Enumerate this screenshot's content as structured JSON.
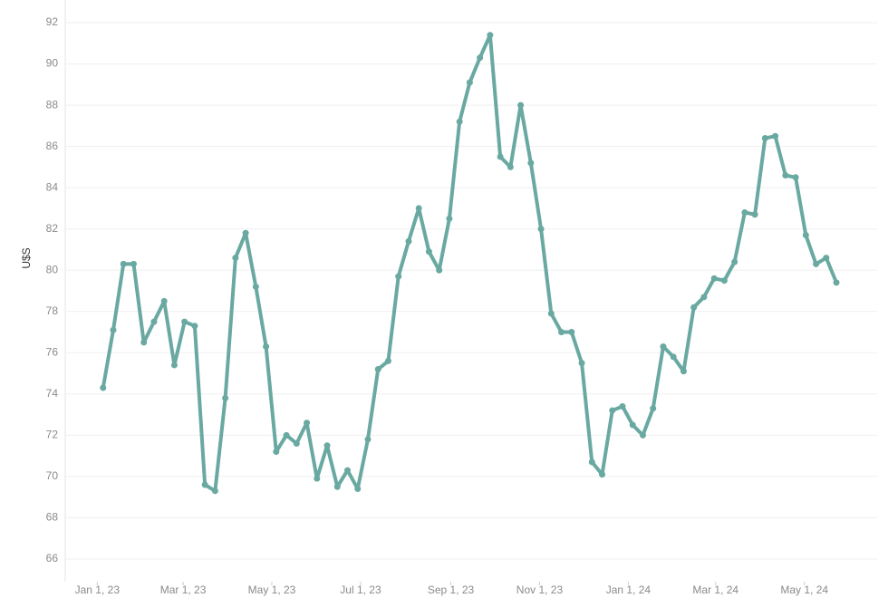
{
  "chart_data": {
    "type": "line",
    "y_label": "U$S",
    "x": [
      "2023-01-05",
      "2023-01-12",
      "2023-01-19",
      "2023-01-26",
      "2023-02-02",
      "2023-02-09",
      "2023-02-16",
      "2023-02-23",
      "2023-03-02",
      "2023-03-09",
      "2023-03-16",
      "2023-03-23",
      "2023-03-30",
      "2023-04-06",
      "2023-04-13",
      "2023-04-20",
      "2023-04-27",
      "2023-05-04",
      "2023-05-11",
      "2023-05-18",
      "2023-05-25",
      "2023-06-01",
      "2023-06-08",
      "2023-06-15",
      "2023-06-22",
      "2023-06-29",
      "2023-07-06",
      "2023-07-13",
      "2023-07-20",
      "2023-07-27",
      "2023-08-03",
      "2023-08-10",
      "2023-08-17",
      "2023-08-24",
      "2023-08-31",
      "2023-09-07",
      "2023-09-14",
      "2023-09-21",
      "2023-09-28",
      "2023-10-05",
      "2023-10-12",
      "2023-10-19",
      "2023-10-26",
      "2023-11-02",
      "2023-11-09",
      "2023-11-16",
      "2023-11-23",
      "2023-11-30",
      "2023-12-07",
      "2023-12-14",
      "2023-12-21",
      "2023-12-28",
      "2024-01-04",
      "2024-01-11",
      "2024-01-18",
      "2024-01-25",
      "2024-02-01",
      "2024-02-08",
      "2024-02-15",
      "2024-02-22",
      "2024-02-29",
      "2024-03-07",
      "2024-03-14",
      "2024-03-21",
      "2024-03-28",
      "2024-04-04",
      "2024-04-11",
      "2024-04-18",
      "2024-04-25",
      "2024-05-02",
      "2024-05-09",
      "2024-05-16",
      "2024-05-23"
    ],
    "series": [
      {
        "color": "#69a9a1",
        "values": [
          74.3,
          77.1,
          80.3,
          80.3,
          76.5,
          77.5,
          78.5,
          75.4,
          77.5,
          77.3,
          69.6,
          69.3,
          73.8,
          80.6,
          81.8,
          79.2,
          76.3,
          71.2,
          72.0,
          71.6,
          72.6,
          69.9,
          71.5,
          69.5,
          70.3,
          69.4,
          71.8,
          75.2,
          75.6,
          79.7,
          81.4,
          83.0,
          80.9,
          80.0,
          82.5,
          87.2,
          89.1,
          90.3,
          91.4,
          85.5,
          85.0,
          88.0,
          85.2,
          82.0,
          77.9,
          77.0,
          77.0,
          75.5,
          70.7,
          70.1,
          73.2,
          73.4,
          72.5,
          72.0,
          73.3,
          76.3,
          75.8,
          75.1,
          78.2,
          78.7,
          79.6,
          79.5,
          80.4,
          82.8,
          82.7,
          86.4,
          86.5,
          84.6,
          84.5,
          81.7,
          80.3,
          80.6,
          79.4
        ]
      }
    ],
    "xlim": [
      "2022-12-10",
      "2024-06-20"
    ],
    "xticks": [
      {
        "value": "2023-01-01",
        "label": "Jan 1, 23"
      },
      {
        "value": "2023-03-01",
        "label": "Mar 1, 23"
      },
      {
        "value": "2023-05-01",
        "label": "May 1, 23"
      },
      {
        "value": "2023-07-01",
        "label": "Jul 1, 23"
      },
      {
        "value": "2023-09-01",
        "label": "Sep 1, 23"
      },
      {
        "value": "2023-11-01",
        "label": "Nov 1, 23"
      },
      {
        "value": "2024-01-01",
        "label": "Jan 1, 24"
      },
      {
        "value": "2024-03-01",
        "label": "Mar 1, 24"
      },
      {
        "value": "2024-05-01",
        "label": "May 1, 24"
      }
    ],
    "ylim": [
      64.9,
      93.1
    ],
    "yticks": [
      66,
      68,
      70,
      72,
      74,
      76,
      78,
      80,
      82,
      84,
      86,
      88,
      90,
      92
    ],
    "grid": true
  }
}
